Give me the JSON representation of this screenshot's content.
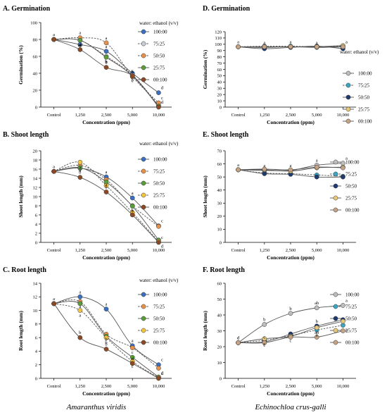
{
  "colors": {
    "axis": "#000000",
    "curve": "#555555",
    "letter": "#000000"
  },
  "species": {
    "left": "Amaranthus viridis",
    "right": "Echinochloa crus-galli"
  },
  "chart_data": [
    {
      "id": "A",
      "type": "line",
      "title": "A. Germination",
      "xlabel": "Concentration (ppm)",
      "ylabel": "Germination (%)",
      "categories": [
        "Control",
        "1,250",
        "2,500",
        "5,000",
        "10,000"
      ],
      "ylim": [
        0,
        100
      ],
      "yticks": [
        0,
        20,
        40,
        60,
        80,
        100
      ],
      "legend_title": "water: ethanol (v/v)",
      "legend_position": "top-right",
      "series": [
        {
          "name": "100:00",
          "color": "#3b6fc2",
          "dash": false,
          "values": [
            80,
            74,
            66,
            40,
            17
          ],
          "letters": [
            "a",
            "",
            "a",
            "",
            "d"
          ]
        },
        {
          "name": "75:25",
          "color": "#c9ced6",
          "dash": true,
          "values": [
            80,
            79,
            60,
            38,
            2
          ],
          "letters": [
            "",
            "ab",
            "b",
            "b",
            ""
          ]
        },
        {
          "name": "50:50",
          "color": "#e8914a",
          "dash": true,
          "values": [
            80,
            82,
            76,
            36,
            5
          ],
          "letters": [
            "",
            "a",
            "a",
            "b",
            "c"
          ]
        },
        {
          "name": "25:75",
          "color": "#5a9e3a",
          "dash": false,
          "values": [
            80,
            79,
            59,
            37,
            1
          ],
          "letters": [
            "",
            "a",
            "b",
            "c",
            ""
          ]
        },
        {
          "name": "00:100",
          "color": "#8b4a23",
          "dash": false,
          "values": [
            80,
            68,
            47,
            37,
            0
          ],
          "letters": [
            "",
            "a",
            "b",
            "c",
            "d"
          ]
        }
      ]
    },
    {
      "id": "D",
      "type": "line",
      "title": "D. Germination",
      "xlabel": "Concentration (ppm)",
      "ylabel": "Germination (%)",
      "categories": [
        "Control",
        "1,250",
        "2,500",
        "5,000",
        "10,000"
      ],
      "ylim": [
        0,
        120
      ],
      "yticks": [
        0,
        10,
        20,
        30,
        40,
        50,
        60,
        70,
        80,
        90,
        100,
        110,
        120
      ],
      "legend_title": "water: ethanol (v/v)",
      "legend_position": "right",
      "series": [
        {
          "name": "100:00",
          "color": "#bdbdbd",
          "dash": false,
          "values": [
            96,
            95,
            96,
            95,
            96
          ],
          "letters": [
            "a",
            "a",
            "a",
            "a",
            "a"
          ]
        },
        {
          "name": "75:25",
          "color": "#3aa6c4",
          "dash": true,
          "values": [
            96,
            97,
            97,
            96,
            97
          ],
          "letters": [
            "",
            "",
            "",
            "",
            ""
          ]
        },
        {
          "name": "50:50",
          "color": "#1f3a6e",
          "dash": false,
          "values": [
            96,
            93,
            95,
            97,
            93
          ],
          "letters": [
            "",
            "",
            "",
            "",
            ""
          ]
        },
        {
          "name": "25:75",
          "color": "#e8c878",
          "dash": false,
          "values": [
            96,
            96,
            96,
            96,
            98
          ],
          "letters": [
            "",
            "",
            "",
            "",
            ""
          ]
        },
        {
          "name": "00:100",
          "color": "#c4a484",
          "dash": false,
          "values": [
            96,
            96,
            96,
            96,
            96
          ],
          "letters": [
            "",
            "",
            "",
            "",
            ""
          ]
        }
      ]
    },
    {
      "id": "B",
      "type": "line",
      "title": "B. Shoot length",
      "xlabel": "Concentration (ppm)",
      "ylabel": "Shoot length (mm)",
      "categories": [
        "Control",
        "1,250",
        "2,500",
        "5,000",
        "10,000"
      ],
      "ylim": [
        0,
        20
      ],
      "yticks": [
        0,
        2,
        4,
        6,
        8,
        10,
        12,
        14,
        16,
        18,
        20
      ],
      "legend_title": "water: ethanol (v/v)",
      "legend_position": "top-right",
      "series": [
        {
          "name": "100:00",
          "color": "#3b6fc2",
          "dash": false,
          "values": [
            15.5,
            16.2,
            14.3,
            9.7,
            3.6
          ],
          "letters": [
            "a",
            "",
            "a",
            "a",
            "c"
          ]
        },
        {
          "name": "75:25",
          "color": "#e8914a",
          "dash": true,
          "values": [
            15.5,
            16.8,
            13.7,
            8,
            3.5
          ],
          "letters": [
            "",
            "a",
            "a",
            "b",
            ""
          ]
        },
        {
          "name": "50:50",
          "color": "#5a9e3a",
          "dash": false,
          "values": [
            15.5,
            16.3,
            13.2,
            7.9,
            0.5
          ],
          "letters": [
            "",
            "",
            "",
            "",
            ""
          ]
        },
        {
          "name": "25:75",
          "color": "#f5c542",
          "dash": true,
          "values": [
            15.5,
            17.5,
            12.4,
            6.5,
            0.2
          ],
          "letters": [
            "",
            "a",
            "",
            "",
            "d"
          ]
        },
        {
          "name": "00:100",
          "color": "#8b4a23",
          "dash": false,
          "values": [
            15.5,
            14.2,
            11,
            6,
            0
          ],
          "letters": [
            "",
            "b",
            "b",
            "c",
            "c"
          ]
        }
      ]
    },
    {
      "id": "E",
      "type": "line",
      "title": "E. Shoot length",
      "xlabel": "Concentration (ppm)",
      "ylabel": "Shoot length (mm)",
      "categories": [
        "Control",
        "1,250",
        "2,500",
        "5,000",
        "10,000"
      ],
      "ylim": [
        0,
        70
      ],
      "yticks": [
        0,
        10,
        20,
        30,
        40,
        50,
        60,
        70
      ],
      "legend_title": "",
      "legend_position": "right",
      "series": [
        {
          "name": "100:00",
          "color": "#bdbdbd",
          "dash": false,
          "values": [
            55.5,
            55,
            55,
            59,
            60.5
          ],
          "letters": [
            "a",
            "a",
            "a",
            "a",
            "a"
          ]
        },
        {
          "name": "75:25",
          "color": "#3aa6c4",
          "dash": true,
          "values": [
            55.5,
            53,
            52.5,
            51.5,
            50.5
          ],
          "letters": [
            "",
            "",
            "",
            "",
            ""
          ]
        },
        {
          "name": "50:50",
          "color": "#1f3a6e",
          "dash": false,
          "values": [
            55.5,
            52.5,
            52,
            50,
            50
          ],
          "letters": [
            "",
            "",
            "",
            "",
            ""
          ]
        },
        {
          "name": "25:75",
          "color": "#e8c878",
          "dash": false,
          "values": [
            55.5,
            55.5,
            54.5,
            57,
            57.5
          ],
          "letters": [
            "",
            "",
            "",
            "",
            ""
          ]
        },
        {
          "name": "00:100",
          "color": "#c4a484",
          "dash": false,
          "values": [
            55.5,
            56,
            55.5,
            57.5,
            57
          ],
          "letters": [
            "",
            "",
            "",
            "",
            ""
          ]
        }
      ]
    },
    {
      "id": "C",
      "type": "line",
      "title": "C. Root length",
      "xlabel": "Concentration (ppm)",
      "ylabel": "Root length (mm)",
      "categories": [
        "Control",
        "1,250",
        "2,500",
        "5,000",
        "10,000"
      ],
      "ylim": [
        0,
        14
      ],
      "yticks": [
        0,
        2,
        4,
        6,
        8,
        10,
        12,
        14
      ],
      "legend_title": "water: ethanol (v/v)",
      "legend_position": "top-right",
      "series": [
        {
          "name": "100:00",
          "color": "#3b6fc2",
          "dash": false,
          "values": [
            11,
            12,
            10.2,
            4.8,
            2
          ],
          "letters": [
            "a",
            "a",
            "a",
            "a",
            "c"
          ]
        },
        {
          "name": "75:25",
          "color": "#e8914a",
          "dash": true,
          "values": [
            11,
            11.3,
            6.5,
            4.5,
            1.5
          ],
          "letters": [
            "",
            "a",
            "b",
            "",
            "d"
          ]
        },
        {
          "name": "50:50",
          "color": "#5a9e3a",
          "dash": false,
          "values": [
            11,
            11,
            6.2,
            3.1,
            0.2
          ],
          "letters": [
            "",
            "",
            "",
            "c",
            ""
          ]
        },
        {
          "name": "25:75",
          "color": "#f5c542",
          "dash": true,
          "values": [
            11,
            10,
            6,
            2.5,
            0.1
          ],
          "letters": [
            "",
            "a",
            "b",
            "c",
            ""
          ]
        },
        {
          "name": "00:100",
          "color": "#8b4a23",
          "dash": false,
          "values": [
            11,
            6,
            4.3,
            2.2,
            0
          ],
          "letters": [
            "",
            "b",
            "b",
            "d",
            "d"
          ]
        }
      ]
    },
    {
      "id": "F",
      "type": "line",
      "title": "F. Root length",
      "xlabel": "Concentration (ppm)",
      "ylabel": "Root length (mm)",
      "categories": [
        "Control",
        "1,250",
        "2,500",
        "5,000",
        "10,000"
      ],
      "ylim": [
        0,
        60
      ],
      "yticks": [
        0,
        10,
        20,
        30,
        40,
        50,
        60
      ],
      "legend_title": "",
      "legend_position": "top-right",
      "series": [
        {
          "name": "100:00",
          "color": "#bdbdbd",
          "dash": false,
          "values": [
            22.5,
            34,
            41,
            44.5,
            46
          ],
          "letters": [
            "c",
            "b",
            "b",
            "ab",
            "a"
          ]
        },
        {
          "name": "75:25",
          "color": "#3aa6c4",
          "dash": true,
          "values": [
            22.5,
            24,
            27,
            30.5,
            33.5
          ],
          "letters": [
            "",
            "c",
            "c",
            "a",
            "a"
          ]
        },
        {
          "name": "50:50",
          "color": "#1f3a6e",
          "dash": false,
          "values": [
            22.5,
            23,
            28,
            33,
            37
          ],
          "letters": [
            "",
            "c",
            "",
            "b",
            ""
          ]
        },
        {
          "name": "25:75",
          "color": "#e8c878",
          "dash": false,
          "values": [
            22.5,
            25,
            26.5,
            32,
            36
          ],
          "letters": [
            "",
            "c",
            "",
            "ab",
            ""
          ]
        },
        {
          "name": "00:100",
          "color": "#c4a484",
          "dash": false,
          "values": [
            22.5,
            22.5,
            26,
            26,
            30
          ],
          "letters": [
            "d",
            "",
            "",
            "",
            ""
          ]
        }
      ]
    }
  ]
}
